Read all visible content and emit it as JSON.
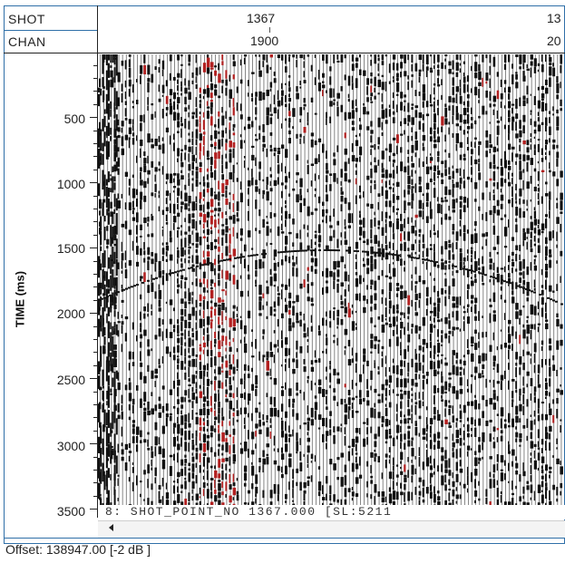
{
  "header": {
    "shot_label": "SHOT",
    "chan_label": "CHAN",
    "shot_values": [
      "1367",
      "13"
    ],
    "chan_values": [
      "1900",
      "20"
    ]
  },
  "axis": {
    "y_title": "TIME (ms)",
    "y_ticks": [
      "500",
      "1000",
      "1500",
      "2000",
      "2500",
      "3000",
      "3500"
    ]
  },
  "trace_info": "8:  SHOT_POINT_NO 1367.000  [SL:5211",
  "status": {
    "offset_text": "Offset: 138947.00 [-2 dB ]"
  },
  "colors": {
    "trace_black": "#111111",
    "trace_red": "#b22020",
    "frame_blue": "#2f6fa8"
  },
  "icons": {
    "scroll_left": "left-arrow-icon"
  }
}
